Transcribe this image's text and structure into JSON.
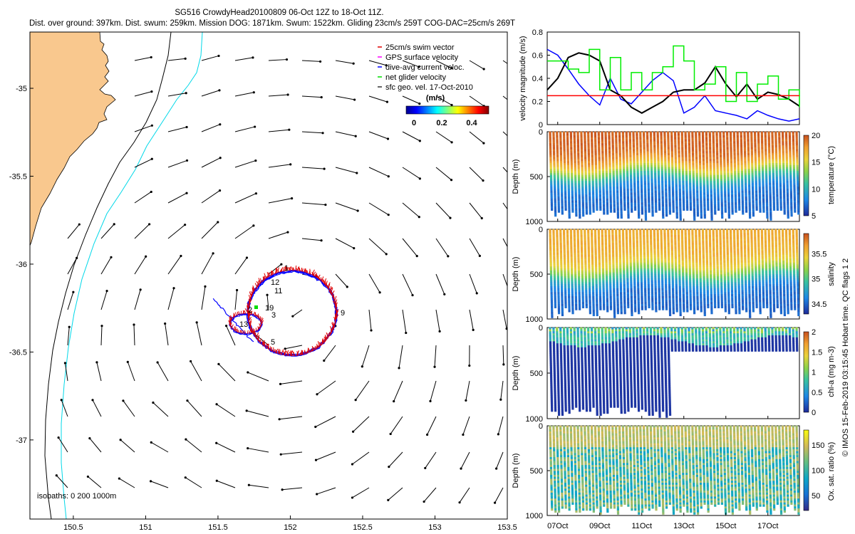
{
  "header": {
    "line1": "SG516 CrowdyHead20100809 06-Oct 12Z to 18-Oct 11Z.",
    "line2": "Dist. over ground: 397km. Dist. swum: 259km. Mission DOG: 1871km. Swum: 1522km. Gliding 23cm/s 259T COG-DAC=25cm/s 269T"
  },
  "map": {
    "type": "quiver-map",
    "lon_range": [
      150.2,
      153.5
    ],
    "lat_range": [
      -37.45,
      -34.68
    ],
    "x_ticks": [
      "150.5",
      "151",
      "151.5",
      "152",
      "152.5",
      "153",
      "153.5"
    ],
    "y_ticks": [
      "-35",
      "-35.5",
      "-36",
      "-36.5",
      "-37"
    ],
    "isobaths_label": "isobaths: 0   200   1000m",
    "legend": [
      {
        "label": "25cm/s swim vector",
        "color": "#e00000"
      },
      {
        "label": "GPS surface velocity",
        "color": "#ff00ff"
      },
      {
        "label": "dive-avg current veloc.",
        "color": "#0000ff"
      },
      {
        "label": "net glider velocity",
        "color": "#00dd00"
      },
      {
        "label": "sfc geo. vel. 17-Oct-2010",
        "color": "#000000"
      }
    ],
    "colorbar": {
      "unit": "(m/s)",
      "ticks": [
        "0",
        "0.2",
        "0.4"
      ]
    },
    "waypoints": [
      "1",
      "2",
      "3",
      "5",
      "9",
      "11",
      "12",
      "13",
      "19"
    ],
    "colors": {
      "land": "#f9c88e",
      "iso200": "#000000",
      "iso1000": "#00d8e8",
      "glider_track": "#0000ff",
      "swim": "#e00000"
    }
  },
  "chart_data": [
    {
      "type": "line",
      "ylabel": "velocity magnitude (m/s)",
      "ylim": [
        0,
        0.8
      ],
      "yticks": [
        "0",
        "0.2",
        "0.4",
        "0.6",
        "0.8"
      ],
      "x_days": [
        6.5,
        18.5
      ],
      "series": [
        {
          "color": "#0000ff",
          "x": [
            6.5,
            7.0,
            7.5,
            8.0,
            8.5,
            9.0,
            9.5,
            10.0,
            10.5,
            11.0,
            11.5,
            12.0,
            12.5,
            13.0,
            13.5,
            14.0,
            14.5,
            15.0,
            15.5,
            16.0,
            16.5,
            17.0,
            17.5,
            18.0,
            18.5
          ],
          "values": [
            0.65,
            0.6,
            0.48,
            0.35,
            0.25,
            0.17,
            0.4,
            0.22,
            0.18,
            0.28,
            0.38,
            0.45,
            0.38,
            0.1,
            0.15,
            0.25,
            0.12,
            0.1,
            0.08,
            0.05,
            0.12,
            0.08,
            0.05,
            0.03,
            0.05
          ]
        },
        {
          "color": "#000000",
          "x": [
            6.5,
            7.0,
            7.5,
            8.0,
            8.5,
            9.0,
            9.5,
            10.0,
            10.5,
            11.0,
            11.5,
            12.0,
            12.5,
            13.0,
            13.5,
            14.0,
            14.5,
            15.0,
            15.5,
            16.0,
            16.5,
            17.0,
            17.5,
            18.0,
            18.5
          ],
          "values": [
            0.3,
            0.4,
            0.58,
            0.62,
            0.6,
            0.55,
            0.3,
            0.25,
            0.15,
            0.1,
            0.15,
            0.2,
            0.28,
            0.3,
            0.3,
            0.36,
            0.5,
            0.35,
            0.24,
            0.35,
            0.22,
            0.28,
            0.26,
            0.22,
            0.16
          ]
        },
        {
          "color": "#00ee00",
          "x": [
            6.5,
            7.0,
            7.5,
            8.0,
            8.5,
            9.0,
            9.5,
            10.0,
            10.5,
            11.0,
            11.5,
            12.0,
            12.5,
            13.0,
            13.5,
            14.0,
            14.5,
            15.0,
            15.5,
            16.0,
            16.5,
            17.0,
            17.5,
            18.0,
            18.5
          ],
          "values": [
            0.55,
            0.55,
            0.48,
            0.45,
            0.65,
            0.3,
            0.58,
            0.3,
            0.45,
            0.3,
            0.45,
            0.5,
            0.68,
            0.55,
            0.3,
            0.35,
            0.5,
            0.2,
            0.45,
            0.2,
            0.35,
            0.42,
            0.22,
            0.3,
            0.15
          ]
        },
        {
          "color": "#ff0000",
          "x": [
            6.5,
            18.5
          ],
          "values": [
            0.25,
            0.25
          ]
        }
      ]
    },
    {
      "type": "scatter-section",
      "variable": "temperature",
      "ylabel": "Depth (m)",
      "colorbar_label": "temperature (°C)",
      "clim": [
        5,
        20
      ],
      "cticks": [
        "5",
        "10",
        "15",
        "20"
      ],
      "depth_lim": [
        0,
        1000
      ],
      "yticks": [
        "0",
        "500",
        "1000"
      ],
      "surface_value": 19.5,
      "thermocline_depth": 450,
      "deep_value": 7
    },
    {
      "type": "scatter-section",
      "variable": "salinity",
      "ylabel": "Depth (m)",
      "colorbar_label": "salinity",
      "clim": [
        34.3,
        35.9
      ],
      "cticks": [
        "34.5",
        "35",
        "35.5"
      ],
      "depth_lim": [
        0,
        1000
      ],
      "yticks": [
        "0",
        "500",
        "1000"
      ],
      "surface_value": 35.6,
      "thermocline_depth": 500,
      "deep_value": 34.5
    },
    {
      "type": "scatter-section",
      "variable": "chl-a",
      "ylabel": "Depth (m)",
      "colorbar_label": "chl-a (mg m-3)",
      "clim": [
        0,
        2
      ],
      "cticks": [
        "0",
        "0.5",
        "1",
        "1.5",
        "2"
      ],
      "depth_lim": [
        0,
        1000
      ],
      "yticks": [
        "0",
        "500",
        "1000"
      ],
      "surface_value": 1.2,
      "thermocline_depth": 150,
      "deep_value": 0
    },
    {
      "type": "scatter-section",
      "variable": "oxygen",
      "ylabel": "Depth (m)",
      "colorbar_label": "Ox. sat. ratio (%)",
      "clim": [
        20,
        180
      ],
      "cticks": [
        "50",
        "100",
        "150"
      ],
      "depth_lim": [
        0,
        1000
      ],
      "yticks": [
        "0",
        "500",
        "1000"
      ],
      "surface_value": 140,
      "thermocline_depth": 300,
      "deep_value": 90
    }
  ],
  "time_axis": {
    "ticks": [
      "07Oct",
      "09Oct",
      "11Oct",
      "13Oct",
      "15Oct",
      "17Oct"
    ],
    "tick_days": [
      7,
      9,
      11,
      13,
      15,
      17
    ]
  },
  "footer": "© IMOS 15-Feb-2019 03:15:45 Hobart time. QC flags 1  2"
}
